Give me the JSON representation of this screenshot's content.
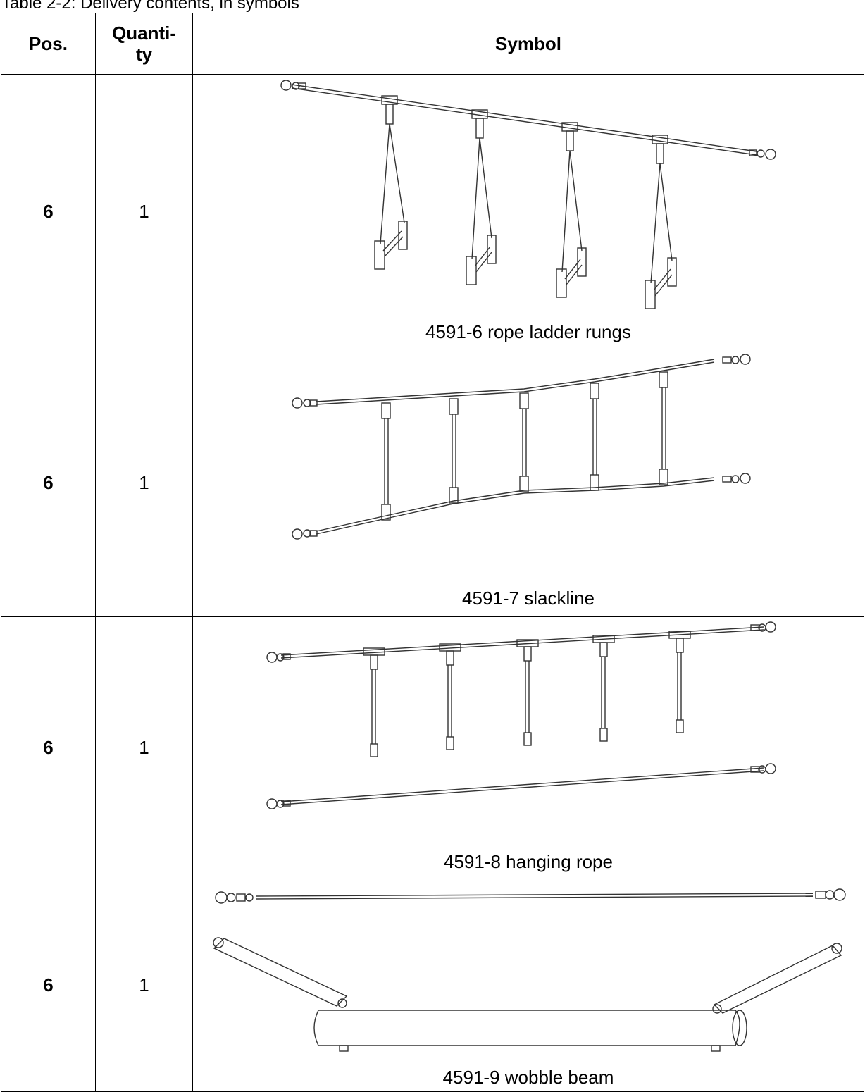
{
  "caption": "Table 2-2: Delivery contents, in symbols",
  "headers": {
    "pos": "Pos.",
    "quantity": "Quanti-\nty",
    "symbol": "Symbol"
  },
  "rows": [
    {
      "pos": "6",
      "quantity": "1",
      "label": "4591-6 rope ladder rungs",
      "icon": "rope-ladder-rungs-drawing"
    },
    {
      "pos": "6",
      "quantity": "1",
      "label": "4591-7 slackline",
      "icon": "slackline-drawing"
    },
    {
      "pos": "6",
      "quantity": "1",
      "label": "4591-8 hanging rope",
      "icon": "hanging-rope-drawing"
    },
    {
      "pos": "6",
      "quantity": "1",
      "label": "4591-9 wobble beam",
      "icon": "wobble-beam-drawing"
    }
  ]
}
